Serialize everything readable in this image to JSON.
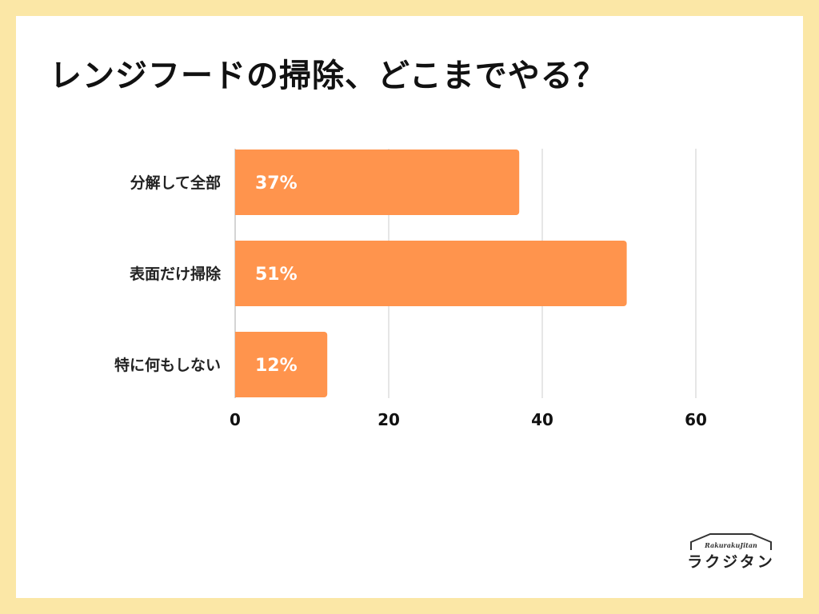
{
  "colors": {
    "background_border": "#fbe7a6",
    "panel": "#ffffff",
    "bar": "#ff944d",
    "grid": "#cccccc",
    "axis": "#aaaaaa"
  },
  "chart_data": {
    "type": "bar",
    "orientation": "horizontal",
    "title": "レンジフードの掃除、どこまでやる？",
    "categories": [
      "分解して全部",
      "表面だけ掃除",
      "特に何もしない"
    ],
    "values": [
      37,
      51,
      12
    ],
    "value_labels": [
      "37%",
      "51%",
      "12%"
    ],
    "xlim": [
      0,
      60
    ],
    "xticks": [
      0,
      20,
      40,
      60
    ],
    "xtick_labels": [
      "0",
      "20",
      "40",
      "60"
    ],
    "grid": true,
    "legend": "none"
  },
  "logo": {
    "subtitle": "RakurakuJitan",
    "text": "ラクジタン",
    "icon": "house-roof-icon"
  }
}
